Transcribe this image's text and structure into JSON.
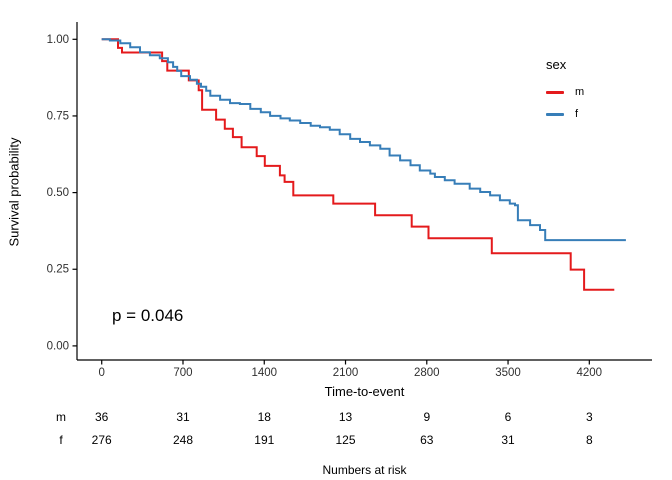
{
  "figure": {
    "pvalue_text": "p = 0.046"
  },
  "chart_data": {
    "type": "line",
    "subtype": "kaplan-meier-survival-step",
    "title": "",
    "xlabel": "Time-to-event",
    "ylabel": "Survival probability",
    "grid": false,
    "legend_position": "right",
    "legend_title": "sex",
    "annotation": "p = 0.046",
    "xlim": [
      -213,
      4740
    ],
    "ylim": [
      -0.046,
      1.0564
    ],
    "x_ticks": [
      0,
      700,
      1400,
      2100,
      2800,
      3500,
      4200
    ],
    "x_tick_labels": [
      "0",
      "700",
      "1400",
      "2100",
      "2800",
      "3500",
      "4200"
    ],
    "y_ticks": [
      0,
      0.25,
      0.5,
      0.75,
      1
    ],
    "y_tick_labels": [
      "0.00",
      "0.25",
      "0.50",
      "0.75",
      "1.00"
    ],
    "series": [
      {
        "name": "m",
        "color": "#E41A1C",
        "end_t": 4415,
        "steps": [
          [
            0,
            1.0
          ],
          [
            140,
            0.972
          ],
          [
            175,
            0.957
          ],
          [
            520,
            0.929
          ],
          [
            565,
            0.898
          ],
          [
            750,
            0.866
          ],
          [
            835,
            0.834
          ],
          [
            865,
            0.77
          ],
          [
            985,
            0.738
          ],
          [
            1060,
            0.708
          ],
          [
            1130,
            0.681
          ],
          [
            1205,
            0.648
          ],
          [
            1335,
            0.619
          ],
          [
            1405,
            0.587
          ],
          [
            1535,
            0.556
          ],
          [
            1575,
            0.535
          ],
          [
            1650,
            0.491
          ],
          [
            1995,
            0.464
          ],
          [
            2355,
            0.426
          ],
          [
            2670,
            0.389
          ],
          [
            2815,
            0.351
          ],
          [
            3360,
            0.302
          ],
          [
            4040,
            0.249
          ],
          [
            4155,
            0.183
          ]
        ]
      },
      {
        "name": "f",
        "color": "#377EB8",
        "end_t": 4515,
        "steps": [
          [
            0,
            1.0
          ],
          [
            70,
            0.996
          ],
          [
            160,
            0.987
          ],
          [
            245,
            0.974
          ],
          [
            330,
            0.958
          ],
          [
            415,
            0.948
          ],
          [
            500,
            0.938
          ],
          [
            570,
            0.925
          ],
          [
            615,
            0.91
          ],
          [
            650,
            0.897
          ],
          [
            685,
            0.88
          ],
          [
            760,
            0.868
          ],
          [
            820,
            0.855
          ],
          [
            855,
            0.845
          ],
          [
            900,
            0.832
          ],
          [
            935,
            0.816
          ],
          [
            1020,
            0.803
          ],
          [
            1105,
            0.792
          ],
          [
            1190,
            0.789
          ],
          [
            1280,
            0.773
          ],
          [
            1370,
            0.762
          ],
          [
            1450,
            0.75
          ],
          [
            1540,
            0.742
          ],
          [
            1620,
            0.735
          ],
          [
            1710,
            0.727
          ],
          [
            1800,
            0.718
          ],
          [
            1880,
            0.713
          ],
          [
            1965,
            0.705
          ],
          [
            2050,
            0.69
          ],
          [
            2140,
            0.675
          ],
          [
            2225,
            0.665
          ],
          [
            2310,
            0.654
          ],
          [
            2400,
            0.643
          ],
          [
            2480,
            0.621
          ],
          [
            2570,
            0.605
          ],
          [
            2660,
            0.589
          ],
          [
            2740,
            0.572
          ],
          [
            2830,
            0.562
          ],
          [
            2870,
            0.551
          ],
          [
            2955,
            0.54
          ],
          [
            3040,
            0.529
          ],
          [
            3170,
            0.513
          ],
          [
            3260,
            0.502
          ],
          [
            3345,
            0.491
          ],
          [
            3430,
            0.475
          ],
          [
            3515,
            0.464
          ],
          [
            3560,
            0.459
          ],
          [
            3585,
            0.41
          ],
          [
            3690,
            0.394
          ],
          [
            3775,
            0.378
          ],
          [
            3820,
            0.345
          ]
        ]
      }
    ],
    "risk_table": {
      "title": "Numbers at risk",
      "times": [
        0,
        700,
        1400,
        2100,
        2800,
        3500,
        4200
      ],
      "rows": [
        {
          "label": "m",
          "values": [
            "36",
            "31",
            "18",
            "13",
            "9",
            "6",
            "3"
          ]
        },
        {
          "label": "f",
          "values": [
            "276",
            "248",
            "191",
            "125",
            "63",
            "31",
            "8"
          ]
        }
      ]
    }
  }
}
